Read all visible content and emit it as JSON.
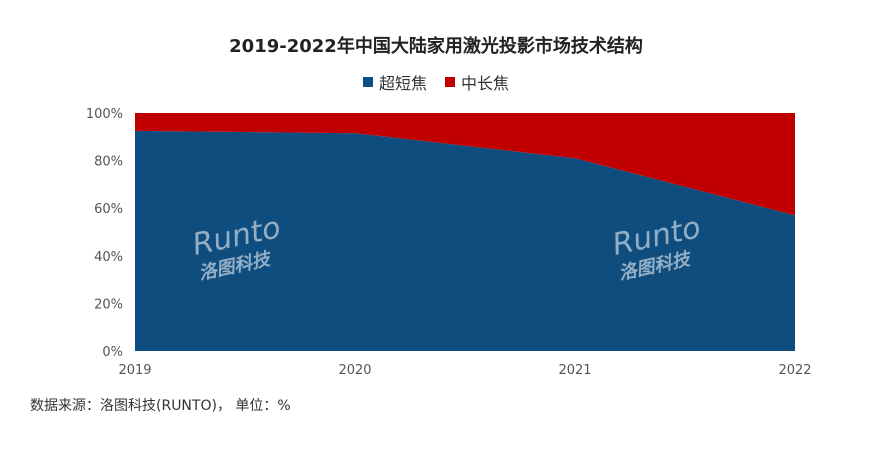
{
  "chart_data": {
    "type": "area",
    "stacked": true,
    "title": "2019-2022年中国大陆家用激光投影市场技术结构",
    "categories": [
      "2019",
      "2020",
      "2021",
      "2022"
    ],
    "series": [
      {
        "name": "超短焦",
        "values": [
          92.5,
          91.5,
          81,
          57
        ],
        "color": "#0f4d7e"
      },
      {
        "name": "中长焦",
        "values": [
          7.5,
          8.5,
          19,
          43
        ],
        "color": "#c00000"
      }
    ],
    "ylim": [
      0,
      100
    ],
    "yticks": [
      "0%",
      "20%",
      "40%",
      "60%",
      "80%",
      "100%"
    ],
    "grid": false,
    "legend": "top-center"
  },
  "watermark": {
    "brand": "Runto",
    "cn": "洛图科技"
  },
  "source": "数据来源：洛图科技(RUNTO)，  单位：%"
}
